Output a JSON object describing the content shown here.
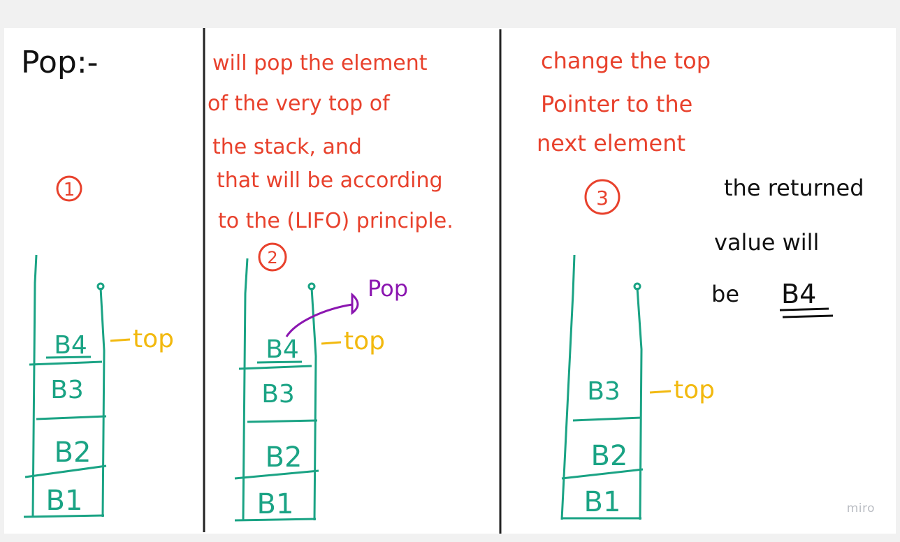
{
  "colors": {
    "note_red": "#e8412c",
    "ink_black": "#111111",
    "stack_green": "#1aa384",
    "top_yellow": "#f2b90f",
    "pop_purple": "#8b16b0",
    "divider": "#222222"
  },
  "panel1": {
    "heading": "Pop:-",
    "step": "1",
    "elements": [
      "B4",
      "B3",
      "B2",
      "B1"
    ],
    "top_label": "top"
  },
  "panel2": {
    "note_lines": [
      "will pop the element",
      "of the very top of",
      "the stack, and",
      "that will be according",
      "to the (LIFO) principle."
    ],
    "step": "2",
    "elements": [
      "B4",
      "B3",
      "B2",
      "B1"
    ],
    "top_label": "top",
    "pop_label": "Pop"
  },
  "panel3": {
    "note_lines": [
      "change the top",
      "Pointer to the",
      "next element"
    ],
    "step": "3",
    "elements": [
      "B3",
      "B2",
      "B1"
    ],
    "top_label": "top",
    "return_lines": [
      "the returned",
      "value will",
      "be"
    ],
    "return_value": "B4"
  },
  "watermark": "miro"
}
